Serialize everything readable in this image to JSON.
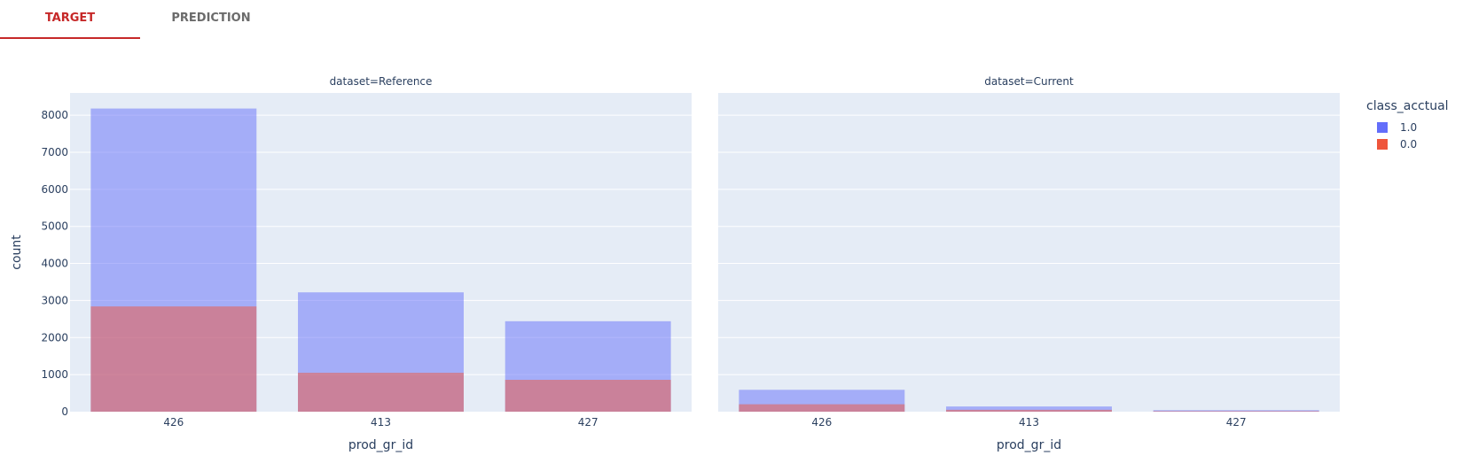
{
  "tabs": [
    {
      "label": "TARGET",
      "active": true
    },
    {
      "label": "PREDICTION",
      "active": false
    }
  ],
  "colors": {
    "series_1": "#636efa",
    "series_0": "#ef553b",
    "plot_bg": "#e5ecf6",
    "active_tab": "#c62828"
  },
  "chart_data": {
    "type": "bar",
    "barmode": "overlay",
    "ylabel": "count",
    "ylim": [
      0,
      8600
    ],
    "yticks": [
      0,
      1000,
      2000,
      3000,
      4000,
      5000,
      6000,
      7000,
      8000
    ],
    "legend": {
      "title": "class_acctual",
      "placement": "right"
    },
    "panels": [
      {
        "title": "dataset=Reference",
        "xlabel": "prod_gr_id",
        "categories": [
          "426",
          "413",
          "427"
        ],
        "series": [
          {
            "name": "1.0",
            "color": "#636efa",
            "values": [
              8180,
              3220,
              2440
            ]
          },
          {
            "name": "0.0",
            "color": "#ef553b",
            "values": [
              2840,
              1050,
              860
            ]
          }
        ]
      },
      {
        "title": "dataset=Current",
        "xlabel": "prod_gr_id",
        "categories": [
          "426",
          "413",
          "427"
        ],
        "series": [
          {
            "name": "1.0",
            "color": "#636efa",
            "values": [
              590,
              140,
              40
            ]
          },
          {
            "name": "0.0",
            "color": "#ef553b",
            "values": [
              200,
              50,
              15
            ]
          }
        ]
      }
    ]
  }
}
